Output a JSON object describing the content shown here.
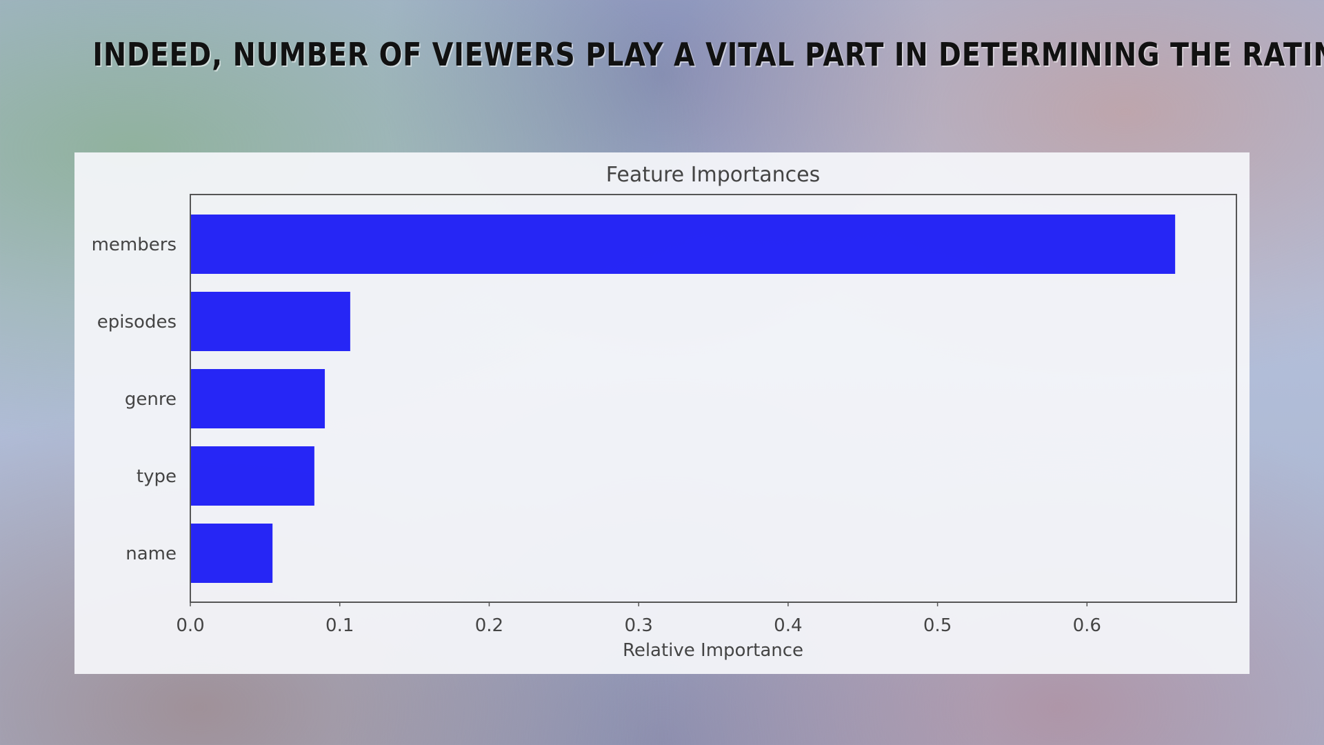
{
  "slide": {
    "title": "INDEED, NUMBER OF VIEWERS PLAY A VITAL PART IN DETERMINING THE RATING"
  },
  "colors": {
    "bar": "#1010f5",
    "axis": "#555555",
    "text": "#444444"
  },
  "chart_data": {
    "type": "bar",
    "orientation": "horizontal",
    "title": "Feature Importances",
    "xlabel": "Relative Importance",
    "ylabel": "",
    "categories": [
      "members",
      "episodes",
      "genre",
      "type",
      "name"
    ],
    "values": [
      0.659,
      0.107,
      0.09,
      0.083,
      0.055
    ],
    "xlim": [
      0.0,
      0.7
    ],
    "xticks": [
      0.0,
      0.1,
      0.2,
      0.3,
      0.4,
      0.5,
      0.6
    ],
    "xtick_labels": [
      "0.0",
      "0.1",
      "0.2",
      "0.3",
      "0.4",
      "0.5",
      "0.6"
    ],
    "grid": false,
    "legend": "none"
  }
}
